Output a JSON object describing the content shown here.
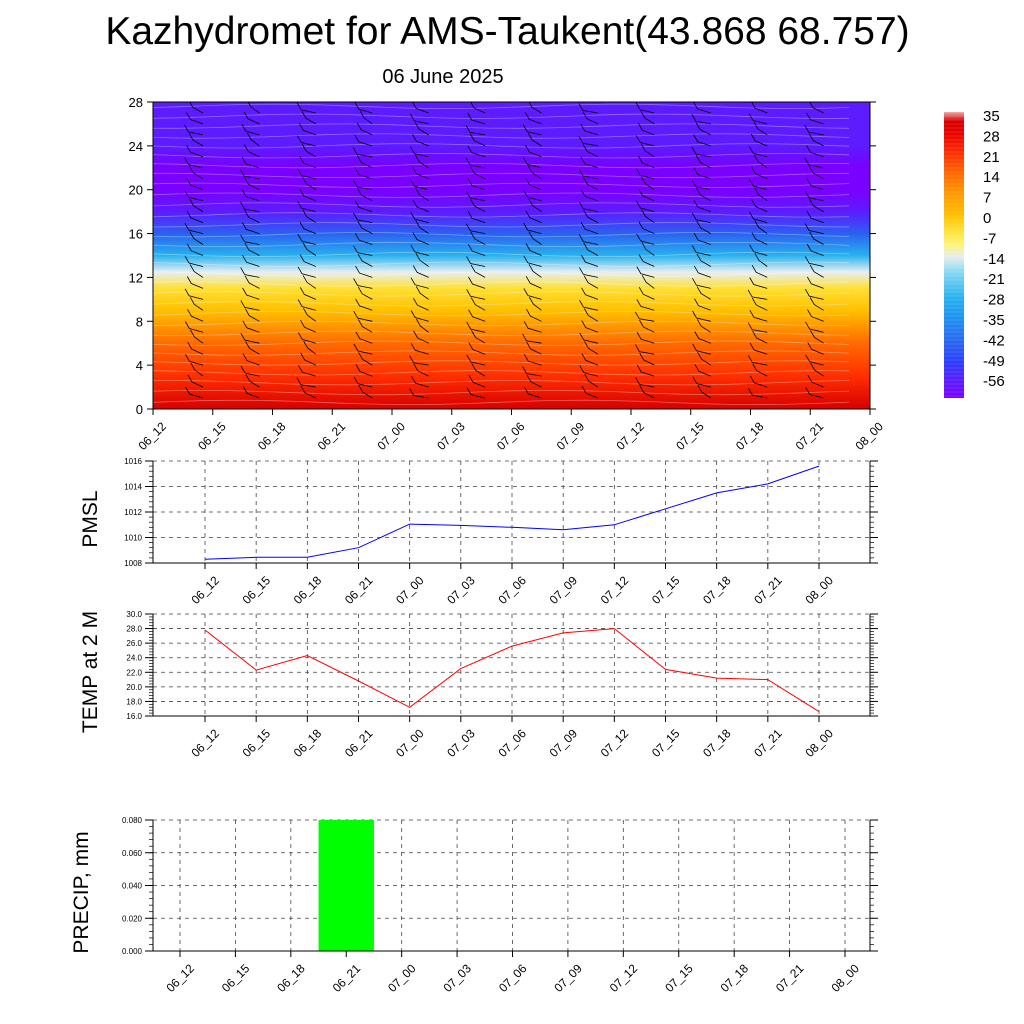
{
  "title": "Kazhydromet for AMS-Taukent(43.868 68.757)",
  "subtitle": "06 June 2025",
  "time_ticks": [
    "06_12",
    "06_15",
    "06_18",
    "06_21",
    "07_00",
    "07_03",
    "07_06",
    "07_09",
    "07_12",
    "07_15",
    "07_18",
    "07_21",
    "08_00"
  ],
  "colors": {
    "pmsl_line": "#0000ff",
    "temp_line": "#ff0000",
    "precip_bar": "#00ff00",
    "grid": "#000000"
  },
  "chart_data": [
    {
      "id": "cross-section",
      "type": "heatmap",
      "title": "",
      "xlabel": "",
      "ylabel": "",
      "x_ticks": [
        "06_12",
        "06_15",
        "06_18",
        "06_21",
        "07_00",
        "07_03",
        "07_06",
        "07_09",
        "07_12",
        "07_15",
        "07_18",
        "07_21",
        "08_00"
      ],
      "y_ticks": [
        0,
        4,
        8,
        12,
        16,
        20,
        24,
        28
      ],
      "ylim": [
        0,
        28
      ],
      "temperature_by_height": [
        {
          "height": 0,
          "temp": 32
        },
        {
          "height": 3,
          "temp": 24
        },
        {
          "height": 6,
          "temp": 14
        },
        {
          "height": 9,
          "temp": 5
        },
        {
          "height": 11,
          "temp": -2
        },
        {
          "height": 12.5,
          "temp": -12
        },
        {
          "height": 14,
          "temp": -25
        },
        {
          "height": 16,
          "temp": -40
        },
        {
          "height": 18,
          "temp": -54
        },
        {
          "height": 20,
          "temp": -60
        },
        {
          "height": 22,
          "temp": -58
        },
        {
          "height": 24,
          "temp": -55
        },
        {
          "height": 28,
          "temp": -52
        }
      ],
      "colorbar_labels": [
        35,
        28,
        21,
        14,
        7,
        0,
        -7,
        -14,
        -21,
        -28,
        -35,
        -42,
        -49,
        -56
      ],
      "overlay": "wind barbs"
    },
    {
      "id": "pmsl",
      "type": "line",
      "ylabel": "PMSL",
      "ylim": [
        1008,
        1016
      ],
      "y_ticks": [
        1008,
        1010,
        1012,
        1014,
        1016
      ],
      "x": [
        "06_12",
        "06_15",
        "06_18",
        "06_21",
        "07_00",
        "07_03",
        "07_06",
        "07_09",
        "07_12",
        "07_15",
        "07_18",
        "07_21",
        "08_00"
      ],
      "values": [
        1008.3,
        1008.45,
        1008.45,
        1009.2,
        1011.05,
        1010.95,
        1010.8,
        1010.6,
        1011.0,
        1012.25,
        1013.5,
        1014.2,
        1015.6
      ],
      "grid": true
    },
    {
      "id": "temp2m",
      "type": "line",
      "ylabel": "TEMP at 2 M",
      "ylim": [
        16.0,
        30.0
      ],
      "y_ticks": [
        "16.0",
        "18.0",
        "20.0",
        "22.0",
        "24.0",
        "26.0",
        "28.0",
        "30.0"
      ],
      "x": [
        "06_12",
        "06_15",
        "06_18",
        "06_21",
        "07_00",
        "07_03",
        "07_06",
        "07_09",
        "07_12",
        "07_15",
        "07_18",
        "07_21",
        "08_00"
      ],
      "values": [
        27.8,
        22.3,
        24.3,
        20.8,
        17.2,
        22.5,
        25.6,
        27.4,
        28.0,
        22.4,
        21.2,
        21.0,
        16.6
      ],
      "grid": true
    },
    {
      "id": "precip",
      "type": "bar",
      "ylabel": "PRECIP, mm",
      "ylim": [
        0,
        0.08
      ],
      "y_ticks": [
        "0.000",
        "0.020",
        "0.040",
        "0.060",
        "0.080"
      ],
      "categories": [
        "06_12",
        "06_15",
        "06_18",
        "06_21",
        "07_00",
        "07_03",
        "07_06",
        "07_09",
        "07_12",
        "07_15",
        "07_18",
        "07_21",
        "08_00"
      ],
      "values": [
        0,
        0,
        0,
        0.08,
        0,
        0,
        0,
        0,
        0,
        0,
        0,
        0,
        0
      ],
      "grid": true
    }
  ]
}
